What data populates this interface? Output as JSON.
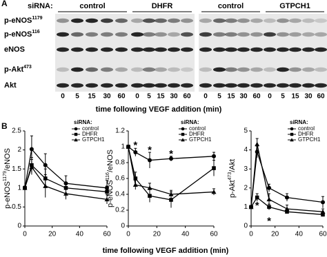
{
  "panel_a": {
    "label": "A",
    "sirna_label": "siRNA:",
    "groups": [
      "control",
      "DHFR",
      "control",
      "GTPCH1"
    ],
    "rows": [
      [
        "p-eNOS",
        "1179"
      ],
      [
        "p-eNOS",
        "116"
      ],
      [
        "eNOS"
      ],
      [
        "p-Akt",
        "473"
      ],
      [
        "Akt"
      ]
    ],
    "timepoints": [
      "0",
      "5",
      "15",
      "30",
      "60"
    ],
    "xlabel": "time following VEGF addition (min)"
  },
  "panel_b": {
    "label": "B",
    "xlabel": "time following VEGF addition (min)"
  },
  "chart_data": [
    {
      "type": "line",
      "ylabel": [
        "p-eNOS",
        "1179",
        "/eNOS"
      ],
      "legend_title": "siRNA:",
      "legend": "upper right",
      "xlim": [
        0,
        60
      ],
      "xticks": [
        0,
        20,
        40,
        60
      ],
      "ylim": [
        0,
        2.5
      ],
      "yticks": [
        0,
        0.5,
        1,
        1.5,
        2,
        2.5
      ],
      "x": [
        0,
        5,
        15,
        30,
        60
      ],
      "series": [
        {
          "name": "control",
          "color": "#000000",
          "marker": "circle",
          "values": [
            1,
            2.02,
            1.6,
            1.12,
            1.0
          ],
          "errors": [
            0.05,
            0.35,
            0.3,
            0.2,
            0.2
          ]
        },
        {
          "name": "DHFR",
          "color": "#000000",
          "marker": "square",
          "values": [
            1,
            1.6,
            1.25,
            1.0,
            0.9
          ],
          "errors": [
            0.05,
            0.2,
            0.25,
            0.15,
            0.15
          ]
        },
        {
          "name": "GTPCH1",
          "color": "#000000",
          "marker": "triangle",
          "values": [
            1,
            1.55,
            1.05,
            0.85,
            0.7
          ],
          "errors": [
            0.05,
            0.2,
            0.3,
            0.15,
            0.12
          ]
        }
      ],
      "annotations": []
    },
    {
      "type": "line",
      "ylabel": [
        "p-eNOS",
        "116",
        "/eNOS"
      ],
      "legend_title": "siRNA:",
      "legend": "upper right",
      "xlim": [
        0,
        60
      ],
      "xticks": [
        0,
        20,
        40,
        60
      ],
      "ylim": [
        0,
        1.2
      ],
      "yticks": [
        0,
        0.2,
        0.4,
        0.6,
        0.8,
        1,
        1.2
      ],
      "x": [
        0,
        5,
        15,
        30,
        60
      ],
      "series": [
        {
          "name": "control",
          "color": "#000000",
          "marker": "circle",
          "values": [
            1,
            0.93,
            0.83,
            0.85,
            0.88
          ],
          "errors": [
            0.02,
            0.05,
            0.1,
            0.03,
            0.05
          ]
        },
        {
          "name": "DHFR",
          "color": "#000000",
          "marker": "square",
          "values": [
            1,
            0.6,
            0.38,
            0.33,
            0.73
          ],
          "errors": [
            0.02,
            0.08,
            0.08,
            0.1,
            0.1
          ]
        },
        {
          "name": "GTPCH1",
          "color": "#000000",
          "marker": "triangle",
          "values": [
            1,
            0.52,
            0.48,
            0.4,
            0.43
          ],
          "errors": [
            0.02,
            0.06,
            0.06,
            0.05,
            0.04
          ]
        }
      ],
      "annotations": [
        {
          "text": "*",
          "x": 5,
          "y": 1.04
        },
        {
          "text": "*",
          "x": 15,
          "y": 0.98
        },
        {
          "text": "*",
          "x": 30,
          "y": 0.93
        }
      ]
    },
    {
      "type": "line",
      "ylabel": [
        "p-Akt",
        "473",
        "/Akt"
      ],
      "legend_title": "siRNA:",
      "legend": "upper right",
      "xlim": [
        0,
        60
      ],
      "xticks": [
        0,
        20,
        40,
        60
      ],
      "ylim": [
        0,
        5
      ],
      "yticks": [
        0,
        1,
        2,
        3,
        4,
        5
      ],
      "x": [
        0,
        5,
        15,
        30,
        60
      ],
      "series": [
        {
          "name": "control",
          "color": "#000000",
          "marker": "circle",
          "values": [
            1,
            3.9,
            2.0,
            1.5,
            1.25
          ],
          "errors": [
            0.05,
            0.3,
            0.2,
            0.2,
            0.3
          ]
        },
        {
          "name": "DHFR",
          "color": "#000000",
          "marker": "square",
          "values": [
            1,
            1.5,
            1.0,
            0.75,
            0.6
          ],
          "errors": [
            0.05,
            0.2,
            0.15,
            0.1,
            0.1
          ]
        },
        {
          "name": "GTPCH1",
          "color": "#000000",
          "marker": "triangle",
          "values": [
            1,
            4.3,
            1.4,
            0.9,
            0.75
          ],
          "errors": [
            0.05,
            0.3,
            0.3,
            0.2,
            0.15
          ]
        }
      ],
      "annotations": [
        {
          "text": "*",
          "x": 5,
          "y": 1.15
        },
        {
          "text": "*",
          "x": 15,
          "y": 0.35
        }
      ]
    }
  ]
}
